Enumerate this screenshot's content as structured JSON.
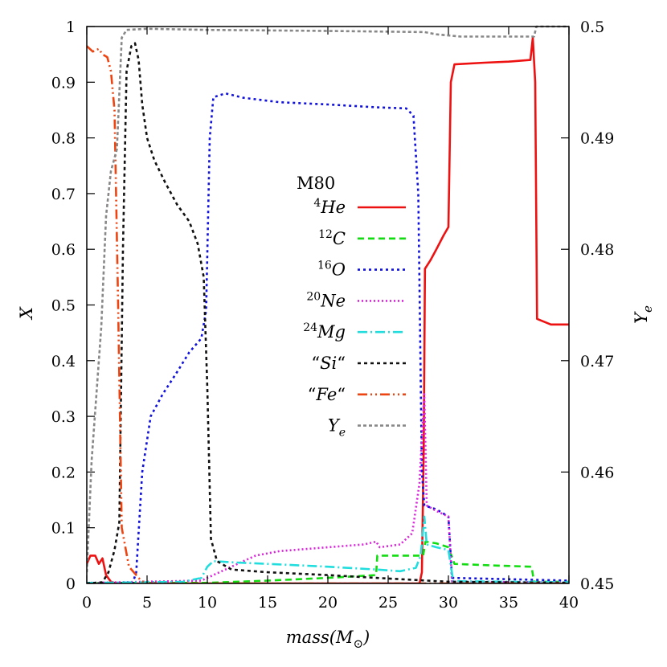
{
  "chart_data": {
    "type": "line",
    "title": "",
    "xlabel": "mass(M⊙)",
    "ylabel": "X",
    "y2label": "Ye",
    "xlim": [
      0,
      40
    ],
    "ylim": [
      0,
      1
    ],
    "y2lim": [
      0.45,
      0.5
    ],
    "xticks": [
      "0",
      "5",
      "10",
      "15",
      "20",
      "25",
      "30",
      "35",
      "40"
    ],
    "yticks": [
      "0",
      "0.1",
      "0.2",
      "0.3",
      "0.4",
      "0.5",
      "0.6",
      "0.7",
      "0.8",
      "0.9",
      "1"
    ],
    "y2ticks": [
      "0.45",
      "0.46",
      "0.47",
      "0.48",
      "0.49",
      "0.5"
    ],
    "grid": false,
    "legend_title": "M80",
    "legend_position": "center",
    "series": [
      {
        "name": "4He",
        "color": "#ee1111",
        "dash": "solid",
        "axis": "y",
        "points": [
          [
            0,
            0.035
          ],
          [
            0.3,
            0.05
          ],
          [
            0.7,
            0.05
          ],
          [
            1.0,
            0.035
          ],
          [
            1.3,
            0.045
          ],
          [
            1.6,
            0.015
          ],
          [
            2.0,
            0.003
          ],
          [
            2.5,
            0
          ],
          [
            27.6,
            0
          ],
          [
            27.8,
            0.02
          ],
          [
            27.95,
            0.25
          ],
          [
            28.05,
            0.565
          ],
          [
            28.5,
            0.58
          ],
          [
            29.0,
            0.6
          ],
          [
            29.6,
            0.625
          ],
          [
            30.0,
            0.64
          ],
          [
            30.2,
            0.9
          ],
          [
            30.5,
            0.932
          ],
          [
            33,
            0.935
          ],
          [
            35,
            0.937
          ],
          [
            36.8,
            0.94
          ],
          [
            37.0,
            0.98
          ],
          [
            37.2,
            0.9
          ],
          [
            37.35,
            0.475
          ],
          [
            38.5,
            0.465
          ],
          [
            40,
            0.465
          ]
        ]
      },
      {
        "name": "12C",
        "color": "#11dd11",
        "dash": "8,5",
        "axis": "y",
        "points": [
          [
            0,
            0.001
          ],
          [
            10,
            0.001
          ],
          [
            15,
            0.005
          ],
          [
            20,
            0.01
          ],
          [
            24,
            0.015
          ],
          [
            24.1,
            0.05
          ],
          [
            27.9,
            0.05
          ],
          [
            28.1,
            0.075
          ],
          [
            29,
            0.072
          ],
          [
            30,
            0.065
          ],
          [
            30.5,
            0.035
          ],
          [
            34,
            0.032
          ],
          [
            36.9,
            0.03
          ],
          [
            37.1,
            0.003
          ],
          [
            40,
            0.003
          ]
        ]
      },
      {
        "name": "16O",
        "color": "#1111dd",
        "dash": "3,4",
        "axis": "y",
        "points": [
          [
            0,
            0
          ],
          [
            3.8,
            0
          ],
          [
            4.1,
            0.02
          ],
          [
            4.6,
            0.2
          ],
          [
            5.3,
            0.3
          ],
          [
            6.3,
            0.34
          ],
          [
            7.5,
            0.38
          ],
          [
            8.5,
            0.415
          ],
          [
            9.5,
            0.44
          ],
          [
            9.9,
            0.49
          ],
          [
            10.2,
            0.8
          ],
          [
            10.5,
            0.873
          ],
          [
            11.5,
            0.88
          ],
          [
            13,
            0.872
          ],
          [
            16,
            0.864
          ],
          [
            20,
            0.86
          ],
          [
            24,
            0.855
          ],
          [
            26.5,
            0.853
          ],
          [
            27.1,
            0.84
          ],
          [
            27.5,
            0.7
          ],
          [
            27.8,
            0.2
          ],
          [
            28.0,
            0.14
          ],
          [
            29,
            0.133
          ],
          [
            30,
            0.12
          ],
          [
            30.3,
            0.01
          ],
          [
            40,
            0.005
          ]
        ]
      },
      {
        "name": "20Ne",
        "color": "#dd22dd",
        "dash": "2,3",
        "axis": "y",
        "points": [
          [
            0,
            0.001
          ],
          [
            9.5,
            0.005
          ],
          [
            10.5,
            0.015
          ],
          [
            12,
            0.03
          ],
          [
            14,
            0.05
          ],
          [
            16,
            0.058
          ],
          [
            20,
            0.065
          ],
          [
            23,
            0.07
          ],
          [
            24,
            0.075
          ],
          [
            24.3,
            0.065
          ],
          [
            26,
            0.07
          ],
          [
            27.0,
            0.09
          ],
          [
            27.6,
            0.18
          ],
          [
            28.0,
            0.34
          ],
          [
            28.2,
            0.14
          ],
          [
            29,
            0.13
          ],
          [
            30,
            0.12
          ],
          [
            30.3,
            0.003
          ],
          [
            40,
            0.002
          ]
        ]
      },
      {
        "name": "24Mg",
        "color": "#22dddd",
        "dash": "12,4,2,4",
        "axis": "y",
        "points": [
          [
            0,
            0.001
          ],
          [
            8,
            0.003
          ],
          [
            9.5,
            0.01
          ],
          [
            10,
            0.03
          ],
          [
            10.5,
            0.04
          ],
          [
            12,
            0.038
          ],
          [
            15,
            0.035
          ],
          [
            20,
            0.03
          ],
          [
            24,
            0.025
          ],
          [
            26,
            0.022
          ],
          [
            27.3,
            0.028
          ],
          [
            27.7,
            0.05
          ],
          [
            28.0,
            0.12
          ],
          [
            28.2,
            0.07
          ],
          [
            29,
            0.065
          ],
          [
            30.0,
            0.06
          ],
          [
            30.4,
            0.004
          ],
          [
            40,
            0.002
          ]
        ]
      },
      {
        "name": "“Si“",
        "color": "#111111",
        "dash": "4,4",
        "axis": "y",
        "points": [
          [
            0,
            0
          ],
          [
            1.3,
            0.002
          ],
          [
            1.8,
            0.02
          ],
          [
            2.3,
            0.06
          ],
          [
            2.7,
            0.11
          ],
          [
            3.0,
            0.6
          ],
          [
            3.3,
            0.92
          ],
          [
            3.7,
            0.965
          ],
          [
            4.0,
            0.97
          ],
          [
            4.3,
            0.94
          ],
          [
            4.6,
            0.86
          ],
          [
            5.0,
            0.8
          ],
          [
            5.6,
            0.76
          ],
          [
            6.5,
            0.72
          ],
          [
            7.5,
            0.68
          ],
          [
            8.5,
            0.65
          ],
          [
            9.2,
            0.61
          ],
          [
            9.7,
            0.55
          ],
          [
            10.0,
            0.35
          ],
          [
            10.3,
            0.08
          ],
          [
            10.8,
            0.04
          ],
          [
            12,
            0.025
          ],
          [
            15,
            0.02
          ],
          [
            20,
            0.015
          ],
          [
            24,
            0.01
          ],
          [
            30,
            0.003
          ],
          [
            40,
            0.001
          ]
        ]
      },
      {
        "name": "“Fe“",
        "color": "#ee4411",
        "dash": "12,4,2,4,2,4",
        "axis": "y",
        "points": [
          [
            0,
            0.965
          ],
          [
            0.5,
            0.955
          ],
          [
            1.0,
            0.96
          ],
          [
            1.3,
            0.95
          ],
          [
            1.7,
            0.945
          ],
          [
            2.0,
            0.92
          ],
          [
            2.3,
            0.85
          ],
          [
            2.6,
            0.5
          ],
          [
            2.9,
            0.1
          ],
          [
            3.5,
            0.03
          ],
          [
            4.5,
            0.005
          ],
          [
            5,
            0
          ],
          [
            40,
            0
          ]
        ]
      },
      {
        "name": "Ye",
        "color": "#888888",
        "dash": "4,3",
        "axis": "y2",
        "points": [
          [
            0,
            0.451
          ],
          [
            0.4,
            0.461
          ],
          [
            0.8,
            0.467
          ],
          [
            1.2,
            0.473
          ],
          [
            1.6,
            0.483
          ],
          [
            2.0,
            0.487
          ],
          [
            2.5,
            0.489
          ],
          [
            2.9,
            0.499
          ],
          [
            3.3,
            0.4997
          ],
          [
            5,
            0.4998
          ],
          [
            10,
            0.4997
          ],
          [
            20,
            0.4996
          ],
          [
            28,
            0.4995
          ],
          [
            29,
            0.4993
          ],
          [
            30,
            0.4992
          ],
          [
            31,
            0.4991
          ],
          [
            36,
            0.4991
          ],
          [
            37.1,
            0.4991
          ],
          [
            37.3,
            0.5
          ],
          [
            40,
            0.5
          ]
        ]
      }
    ]
  }
}
